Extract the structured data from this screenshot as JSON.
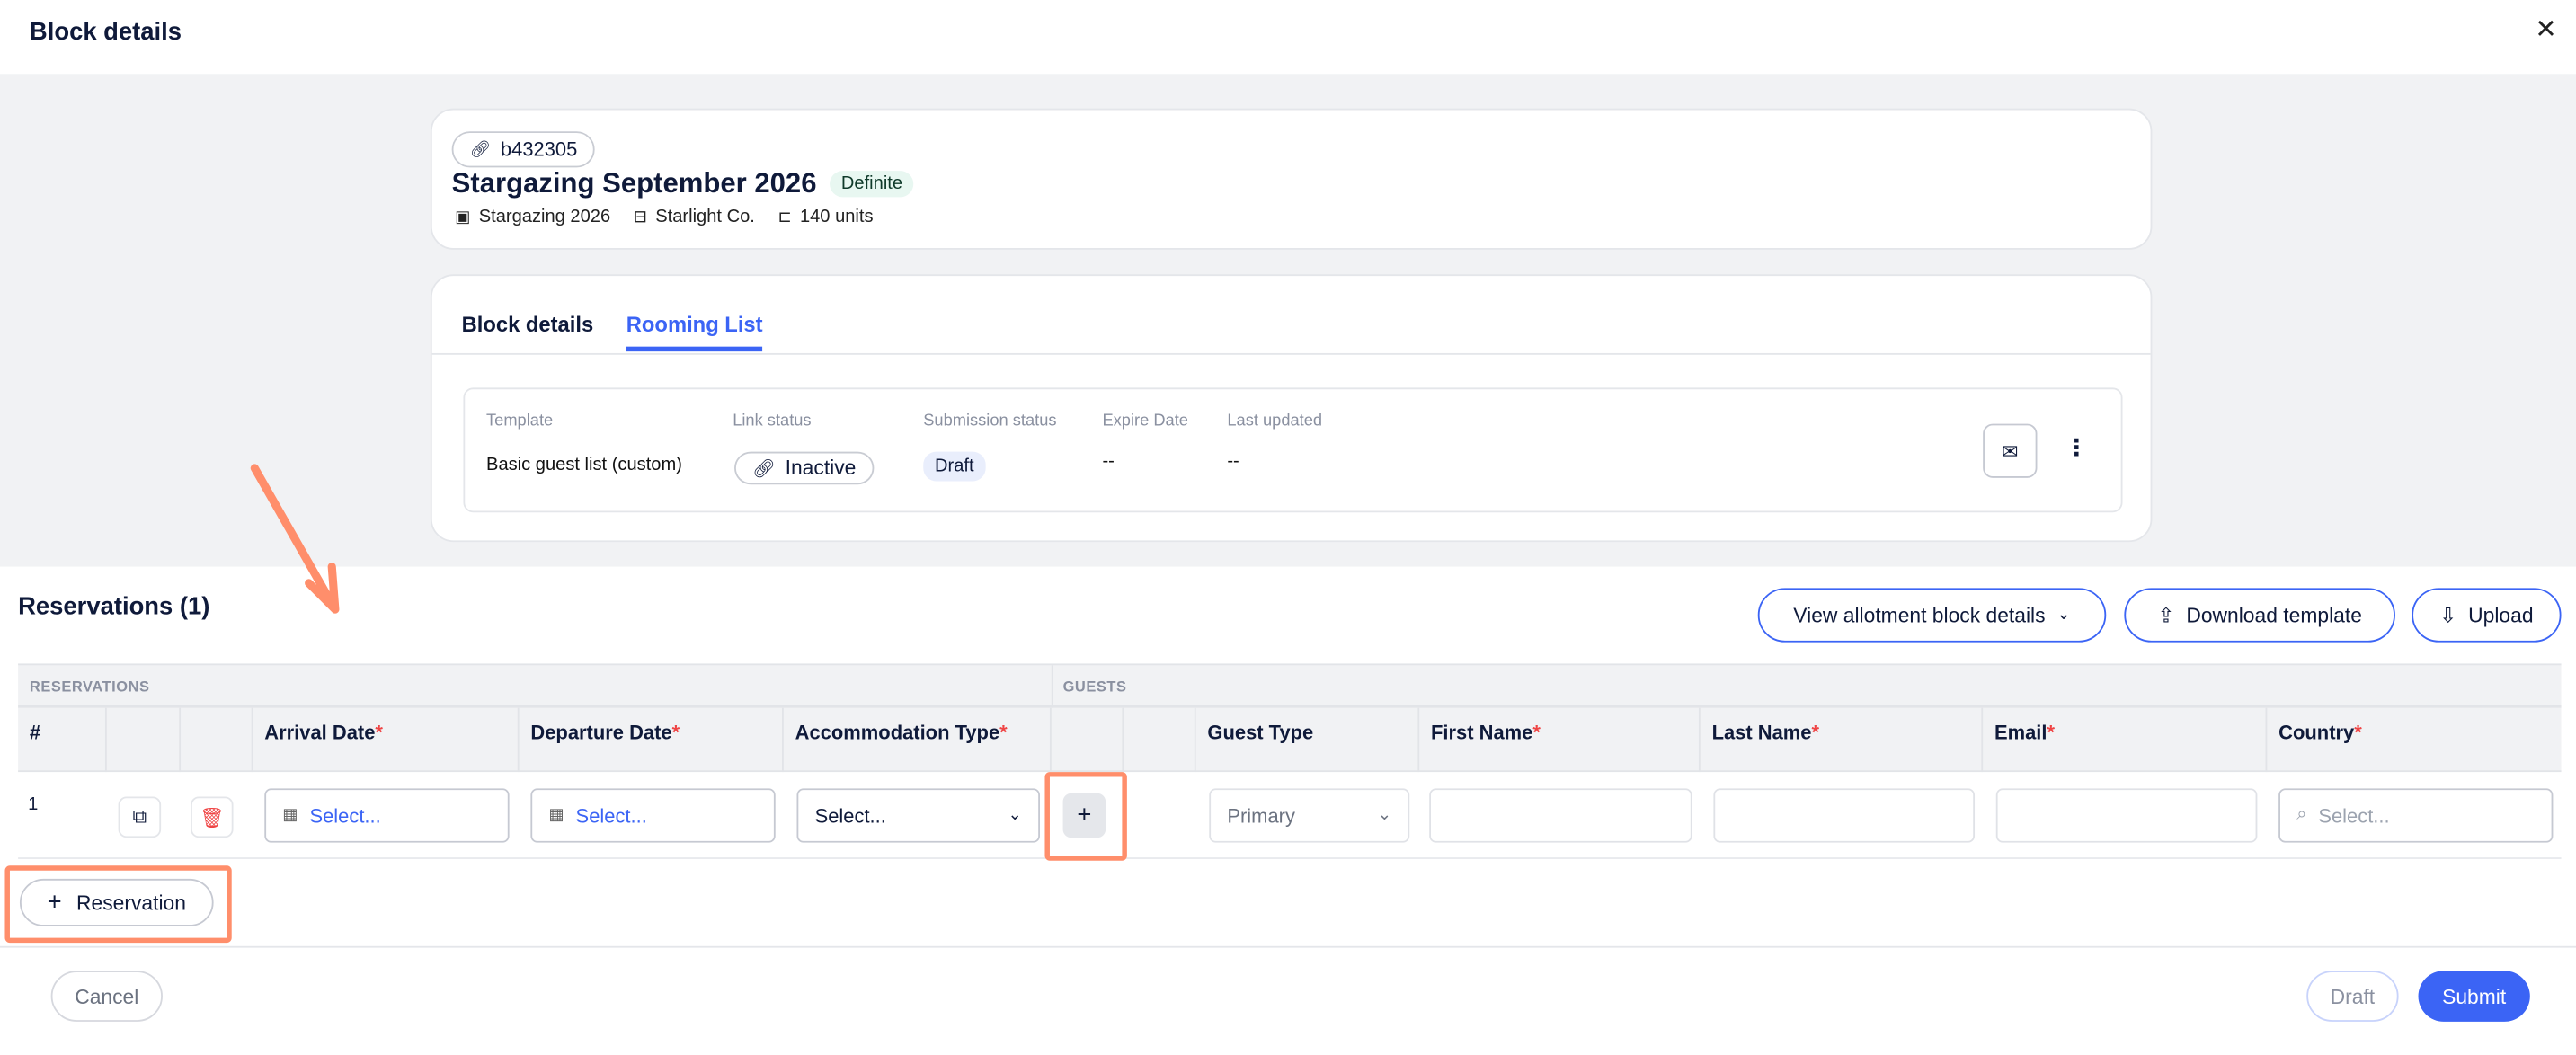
{
  "modal": {
    "title": "Block details",
    "close_icon": "close-icon"
  },
  "block": {
    "id": "b432305",
    "name": "Stargazing September 2026",
    "status": "Definite",
    "event": "Stargazing 2026",
    "company": "Starlight Co.",
    "units": "140 units"
  },
  "tabs": [
    {
      "label": "Block details",
      "active": false
    },
    {
      "label": "Rooming List",
      "active": true
    }
  ],
  "rooming": {
    "labels": {
      "template": "Template",
      "link_status": "Link status",
      "submission_status": "Submission status",
      "expire_date": "Expire Date",
      "last_updated": "Last updated"
    },
    "template": "Basic guest list (custom)",
    "link_status": "Inactive",
    "submission_status": "Draft",
    "expire_date": "--",
    "last_updated": "--"
  },
  "reservations": {
    "title": "Reservations (1)",
    "view_allotment": "View allotment block details",
    "download_template": "Download template",
    "upload": "Upload",
    "group_reservations": "RESERVATIONS",
    "group_guests": "GUESTS",
    "columns": {
      "num": "#",
      "arrival": "Arrival Date",
      "departure": "Departure Date",
      "accommodation": "Accommodation Type",
      "guest_type": "Guest Type",
      "first_name": "First Name",
      "last_name": "Last Name",
      "email": "Email",
      "country": "Country"
    },
    "required_mark": "*",
    "rows": [
      {
        "num": "1",
        "arrival": "Select...",
        "departure": "Select...",
        "accommodation": "Select...",
        "guest_type": "Primary",
        "first_name": "",
        "last_name": "",
        "email": "",
        "country_placeholder": "Select..."
      }
    ],
    "add_guest": "+",
    "add_reservation": "Reservation"
  },
  "footer": {
    "cancel": "Cancel",
    "draft": "Draft",
    "submit": "Submit"
  },
  "colors": {
    "accent": "#3b64f5",
    "highlight": "#ff8e6b",
    "required": "#ef4444",
    "definite_bg": "#e8f7f1",
    "draft_bg": "#e9eefc"
  }
}
